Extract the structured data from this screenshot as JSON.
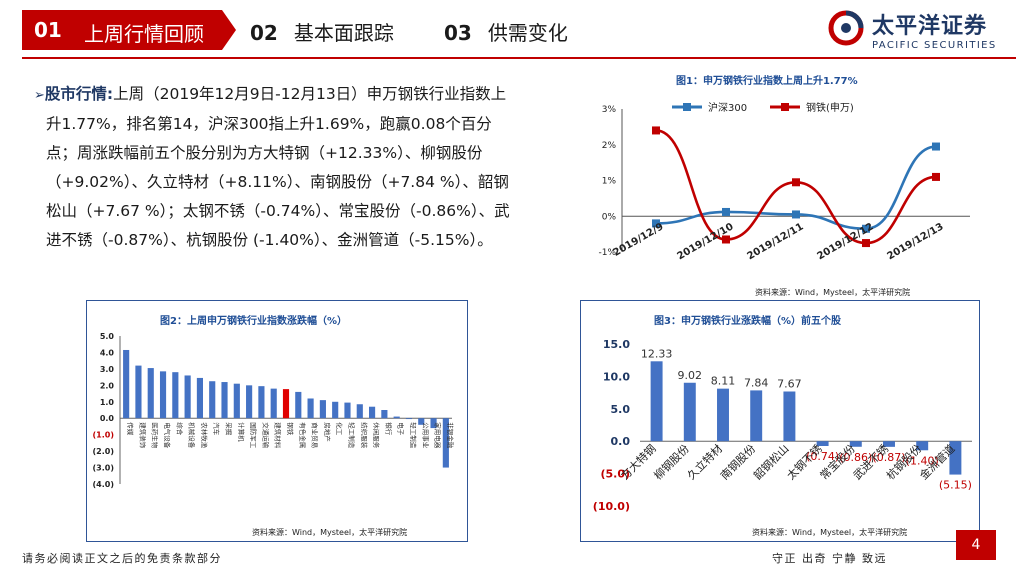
{
  "header": {
    "tabs": [
      {
        "num": "01",
        "label": "上周行情回顾"
      },
      {
        "num": "02",
        "label": "基本面跟踪"
      },
      {
        "num": "03",
        "label": "供需变化"
      }
    ],
    "logo": {
      "cn": "太平洋证券",
      "en": "PACIFIC SECURITIES"
    }
  },
  "paragraph": {
    "bullet": "➢",
    "keyword": "股市行情:",
    "text": "上周（2019年12月9日-12月13日）申万钢铁行业指数上升1.77%，排名第14，沪深300指上升1.69%，跑赢0.08个百分点；周涨跌幅前五个股分别为方大特钢（+12.33%）、柳钢股份（+9.02%）、久立特材（+8.11%）、南钢股份（+7.84 %）、韶钢松山（+7.67 %）；太钢不锈（-0.74%）、常宝股份（-0.86%）、武进不锈（-0.87%）、杭钢股份 (-1.40%）、金洲管道（-5.15%）。"
  },
  "colors": {
    "accent": "#c00000",
    "navy": "#1f3864",
    "blue_bar": "#4472c4",
    "red_line": "#c00000",
    "blue_line": "#2e75b6"
  },
  "chart_data": [
    {
      "type": "line",
      "title": "图1：申万钢铁行业指数上周上升1.77%",
      "categories": [
        "2019/12/9",
        "2019/12/10",
        "2019/12/11",
        "2019/12/12",
        "2019/12/13"
      ],
      "series": [
        {
          "name": "沪深300",
          "values": [
            -0.2,
            0.12,
            0.05,
            -0.35,
            1.95
          ]
        },
        {
          "name": "钢铁(申万)",
          "values": [
            2.4,
            -0.65,
            0.95,
            -0.75,
            1.1
          ]
        }
      ],
      "yticks": [
        "3%",
        "2%",
        "1%",
        "0%",
        "-1%"
      ],
      "ylim": [
        -1,
        3
      ],
      "source": "资料来源：Wind，Mysteel，太平洋研究院"
    },
    {
      "type": "bar",
      "title": "图2：上周申万钢铁行业指数涨跌幅（%）",
      "categories": [
        "传媒",
        "建筑装饰",
        "医药生物",
        "电气设备",
        "综合",
        "机械设备",
        "农林牧渔",
        "汽车",
        "采掘",
        "计算机",
        "国防军工",
        "交通运输",
        "建筑材料",
        "钢铁",
        "有色金属",
        "商业贸易",
        "房地产",
        "化工",
        "轻工制造",
        "纺织服装",
        "休闲服务",
        "银行",
        "电子",
        "轻工制造",
        "公用事业",
        "家用电器",
        "非银金融"
      ],
      "values": [
        4.15,
        3.2,
        3.05,
        2.85,
        2.8,
        2.6,
        2.45,
        2.25,
        2.2,
        2.1,
        2.0,
        1.95,
        1.8,
        1.77,
        1.6,
        1.2,
        1.1,
        1.0,
        0.95,
        0.85,
        0.7,
        0.5,
        0.1,
        -0.05,
        -0.4,
        -0.6,
        -3.0
      ],
      "highlight": "钢铁",
      "yticks": [
        "5.0",
        "4.0",
        "3.0",
        "2.0",
        "1.0",
        "0.0",
        "(1.0)",
        "(2.0)",
        "(3.0)",
        "(4.0)"
      ],
      "ylim": [
        -4,
        5
      ],
      "source": "资料来源：Wind，Mysteel，太平洋研究院"
    },
    {
      "type": "bar",
      "title": "图3：申万钢铁行业涨跌幅（%）前五个股",
      "categories": [
        "方大特钢",
        "柳钢股份",
        "久立特材",
        "南钢股份",
        "韶钢松山",
        "太钢不锈",
        "常宝股份",
        "武进不锈",
        "杭钢股份",
        "金洲管道"
      ],
      "values": [
        12.33,
        9.02,
        8.11,
        7.84,
        7.67,
        -0.74,
        -0.86,
        -0.87,
        -1.4,
        -5.15
      ],
      "labels": [
        "12.33",
        "9.02",
        "8.11",
        "7.84",
        "7.67",
        "(0.74)",
        "(0.86)",
        "(0.87)",
        "(1.40)",
        "(5.15)"
      ],
      "yticks": [
        "15.0",
        "10.0",
        "5.0",
        "0.0",
        "(5.0)",
        "(10.0)"
      ],
      "ylim": [
        -10,
        15
      ],
      "source": "资料来源：Wind，Mysteel，太平洋研究院"
    }
  ],
  "footer": {
    "left": "请务必阅读正文之后的免责条款部分",
    "right": "守正  出奇  宁静  致远",
    "page": "4"
  }
}
